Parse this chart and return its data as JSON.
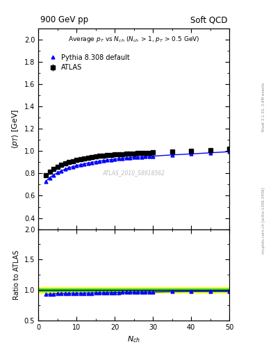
{
  "title_left": "900 GeV pp",
  "title_right": "Soft QCD",
  "watermark": "ATLAS_2010_S8918562",
  "right_label_top": "Rivet 3.1.10, 3.6M events",
  "right_label_bot": "mcplots.cern.ch [arXiv:1306.3436]",
  "xlabel": "N_{ch}",
  "ylabel_main": "<p_{T}> [GeV]",
  "ylabel_ratio": "Ratio to ATLAS",
  "xlim": [
    0,
    50
  ],
  "ylim_main": [
    0.3,
    2.1
  ],
  "ylim_ratio": [
    0.5,
    2.0
  ],
  "yticks_main": [
    0.4,
    0.6,
    0.8,
    1.0,
    1.2,
    1.4,
    1.6,
    1.8,
    2.0
  ],
  "yticks_ratio": [
    0.5,
    1.0,
    1.5,
    2.0
  ],
  "atlas_x": [
    2,
    3,
    4,
    5,
    6,
    7,
    8,
    9,
    10,
    11,
    12,
    13,
    14,
    15,
    16,
    17,
    18,
    19,
    20,
    21,
    22,
    23,
    24,
    25,
    26,
    27,
    28,
    29,
    30,
    35,
    40,
    45,
    50
  ],
  "atlas_y": [
    0.785,
    0.818,
    0.84,
    0.858,
    0.875,
    0.887,
    0.9,
    0.911,
    0.92,
    0.928,
    0.935,
    0.941,
    0.947,
    0.952,
    0.956,
    0.96,
    0.963,
    0.966,
    0.968,
    0.971,
    0.973,
    0.975,
    0.977,
    0.979,
    0.981,
    0.982,
    0.984,
    0.985,
    0.987,
    0.993,
    1.0,
    1.01,
    1.02
  ],
  "atlas_yerr": [
    0.015,
    0.013,
    0.011,
    0.01,
    0.009,
    0.009,
    0.008,
    0.008,
    0.007,
    0.007,
    0.007,
    0.006,
    0.006,
    0.006,
    0.006,
    0.005,
    0.005,
    0.005,
    0.005,
    0.005,
    0.005,
    0.005,
    0.005,
    0.005,
    0.005,
    0.005,
    0.005,
    0.005,
    0.005,
    0.005,
    0.005,
    0.01,
    0.01
  ],
  "pythia_x": [
    2,
    3,
    4,
    5,
    6,
    7,
    8,
    9,
    10,
    11,
    12,
    13,
    14,
    15,
    16,
    17,
    18,
    19,
    20,
    21,
    22,
    23,
    24,
    25,
    26,
    27,
    28,
    29,
    30,
    35,
    40,
    45,
    50
  ],
  "pythia_y": [
    0.73,
    0.762,
    0.786,
    0.806,
    0.823,
    0.837,
    0.85,
    0.861,
    0.87,
    0.878,
    0.886,
    0.893,
    0.899,
    0.905,
    0.91,
    0.915,
    0.92,
    0.924,
    0.928,
    0.932,
    0.935,
    0.938,
    0.941,
    0.944,
    0.947,
    0.949,
    0.951,
    0.953,
    0.955,
    0.966,
    0.975,
    0.985,
    0.995
  ],
  "atlas_color": "black",
  "pythia_color": "blue",
  "atlas_marker": "s",
  "pythia_marker": "^",
  "marker_size": 4,
  "band_yellow_lo": 0.95,
  "band_yellow_hi": 1.05,
  "band_green_lo": 0.98,
  "band_green_hi": 1.02,
  "ratio_line": 1.0
}
